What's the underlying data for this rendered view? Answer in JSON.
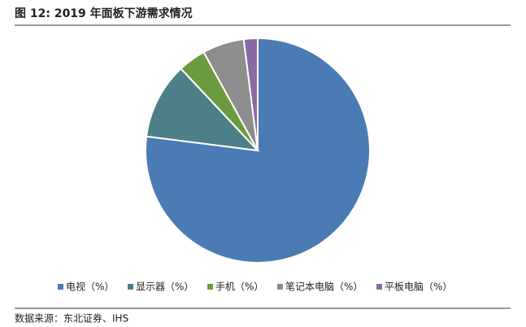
{
  "chart_data": {
    "type": "pie",
    "title": "图 12:  2019 年面板下游需求情况",
    "categories": [
      "电视（%）",
      "显示器（%）",
      "手机（%）",
      "笔记本电脑（%）",
      "平板电脑（%）"
    ],
    "values": [
      77,
      11,
      4,
      6,
      2
    ],
    "colors": [
      "#4a7bb5",
      "#4d7f88",
      "#6c9b3f",
      "#8d8d8d",
      "#8b6aa3"
    ],
    "legend": "bottom",
    "source": "数据来源：东北证券、IHS"
  }
}
